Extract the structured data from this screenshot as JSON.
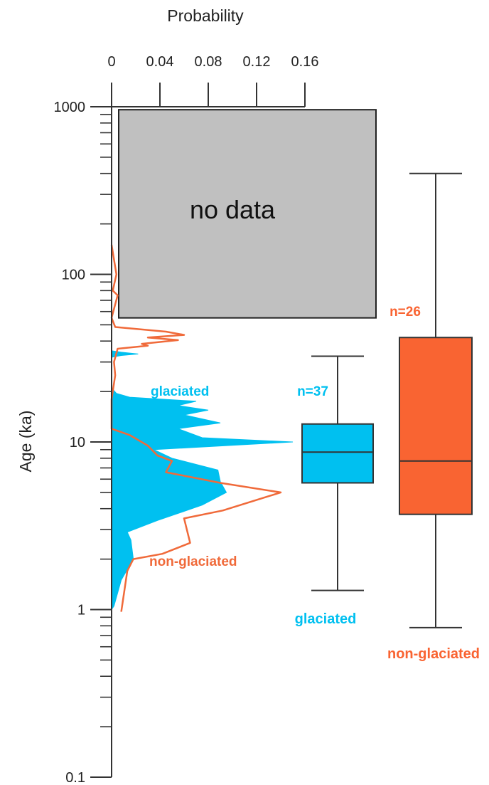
{
  "chart_data": {
    "type": "area",
    "title": "",
    "x_axis": {
      "label": "Probability",
      "position": "top",
      "range": [
        0,
        0.16
      ],
      "ticks": [
        0,
        0.04,
        0.08,
        0.12,
        0.16
      ],
      "tick_labels": [
        "0",
        "0.04",
        "0.08",
        "0.12",
        "0.16"
      ]
    },
    "y_axis": {
      "label": "Age (ka)",
      "scale": "log",
      "range": [
        0.1,
        1000
      ],
      "ticks": [
        0.1,
        1,
        10,
        100,
        1000
      ],
      "tick_labels": [
        "0.1",
        "1",
        "10",
        "100",
        "1000"
      ]
    },
    "grid": false,
    "no_data_region": {
      "label": "no data",
      "age_range": [
        55,
        960
      ],
      "color": "#c0c0c0"
    },
    "series": [
      {
        "name": "glaciated",
        "kind": "filled_density",
        "color": "#00c0f0",
        "points": [
          [
            0,
            0.1
          ],
          [
            0,
            1
          ],
          [
            0.002,
            1.05
          ],
          [
            0.008,
            1.5
          ],
          [
            0.018,
            2.0
          ],
          [
            0.016,
            2.6
          ],
          [
            0.013,
            2.9
          ],
          [
            0.038,
            3.4
          ],
          [
            0.075,
            4.2
          ],
          [
            0.095,
            5.0
          ],
          [
            0.09,
            5.8
          ],
          [
            0.088,
            6.8
          ],
          [
            0.05,
            8.0
          ],
          [
            0.035,
            9.0
          ],
          [
            0.15,
            10.0
          ],
          [
            0.075,
            10.6
          ],
          [
            0.055,
            12.0
          ],
          [
            0.09,
            13.0
          ],
          [
            0.06,
            14.5
          ],
          [
            0.08,
            15.5
          ],
          [
            0.055,
            16.5
          ],
          [
            0.07,
            17.5
          ],
          [
            0.015,
            18.5
          ],
          [
            0.004,
            19.5
          ],
          [
            0,
            21
          ],
          [
            0,
            32
          ],
          [
            0.008,
            32.8
          ],
          [
            0.022,
            33.5
          ],
          [
            0.008,
            34.3
          ],
          [
            0,
            35
          ],
          [
            0,
            1000
          ]
        ]
      },
      {
        "name": "non-glaciated",
        "kind": "density_line",
        "color": "#f06a3a",
        "points": [
          [
            0.008,
            0.97
          ],
          [
            0.013,
            1.7
          ],
          [
            0.018,
            2.0
          ],
          [
            0.042,
            2.15
          ],
          [
            0.065,
            2.5
          ],
          [
            0.06,
            3.5
          ],
          [
            0.092,
            3.9
          ],
          [
            0.14,
            5.0
          ],
          [
            0.09,
            5.7
          ],
          [
            0.045,
            6.6
          ],
          [
            0.05,
            7.7
          ],
          [
            0.038,
            8.3
          ],
          [
            0.03,
            9.5
          ],
          [
            0.015,
            11.0
          ],
          [
            0,
            12.0
          ],
          [
            0,
            18
          ],
          [
            0.003,
            25
          ],
          [
            0.002,
            30
          ],
          [
            0.005,
            36
          ],
          [
            0.03,
            37.5
          ],
          [
            0.025,
            38.5
          ],
          [
            0.055,
            40.5
          ],
          [
            0.03,
            42.0
          ],
          [
            0.06,
            43.5
          ],
          [
            0.045,
            45.5
          ],
          [
            0.003,
            48.5
          ],
          [
            0,
            55
          ],
          [
            0.005,
            75
          ],
          [
            0.001,
            80
          ],
          [
            0.004,
            100
          ],
          [
            0,
            150
          ]
        ]
      }
    ],
    "boxplots": [
      {
        "name": "glaciated",
        "label": "glaciated",
        "n_label": "n=37",
        "color": "#00c0f0",
        "min": 1.3,
        "q1": 5.7,
        "median": 8.7,
        "q3": 12.8,
        "max": 32.5
      },
      {
        "name": "non-glaciated",
        "label": "non-glaciated",
        "n_label": "n=26",
        "color": "#f96432",
        "min": 0.78,
        "q1": 3.7,
        "median": 7.7,
        "q3": 42,
        "max": 400
      }
    ],
    "annotations": {
      "glaciated_curve_label": "glaciated",
      "non_glaciated_curve_label": "non-glaciated"
    }
  }
}
